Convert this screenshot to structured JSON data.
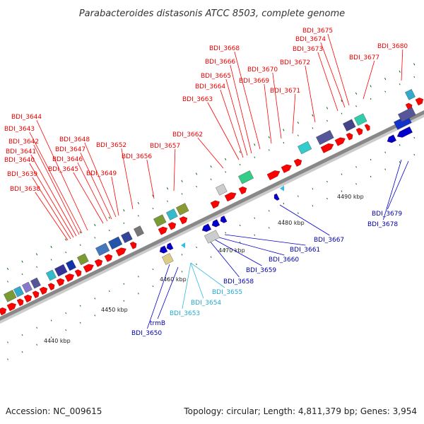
{
  "title": "Parabacteroides distasonis ATCC 8503, complete genome",
  "accession": "Accession: NC_009615",
  "topology": "Topology: circular; Length: 4,811,379 bp; Genes: 3,954",
  "colors": {
    "forward": "#ff0000",
    "reverse": "#0000cc",
    "rna": "#33bbee",
    "backbone": "#888888",
    "ticks": "#006600"
  },
  "ticks": [
    "4440 kbp",
    "4450 kbp",
    "4460 kbp",
    "4470 kbp",
    "4480 kbp",
    "4490 kbp"
  ],
  "forward_labels": [
    "BDI_3638",
    "BDI_3639",
    "BDI_3640",
    "BDI_3641",
    "BDI_3642",
    "BDI_3643",
    "BDI_3644",
    "BDI_3645",
    "BDI_3646",
    "BDI_3647",
    "BDI_3648",
    "BDI_3649",
    "BDI_3652",
    "BDI_3656",
    "BDI_3657",
    "BDI_3662",
    "BDI_3663",
    "BDI_3664",
    "BDI_3665",
    "BDI_3666",
    "BDI_3668",
    "BDI_3669",
    "BDI_3670",
    "BDI_3671",
    "BDI_3672",
    "BDI_3673",
    "BDI_3674",
    "BDI_3675",
    "BDI_3677",
    "BDI_3680"
  ],
  "reverse_labels": [
    "BDI_3650",
    "trmB",
    "BDI_3658",
    "BDI_3659",
    "BDI_3660",
    "BDI_3661",
    "BDI_3667",
    "BDI_3678",
    "BDI_3679"
  ],
  "rna_labels": [
    "BDI_3653",
    "BDI_3654",
    "BDI_3655"
  ]
}
